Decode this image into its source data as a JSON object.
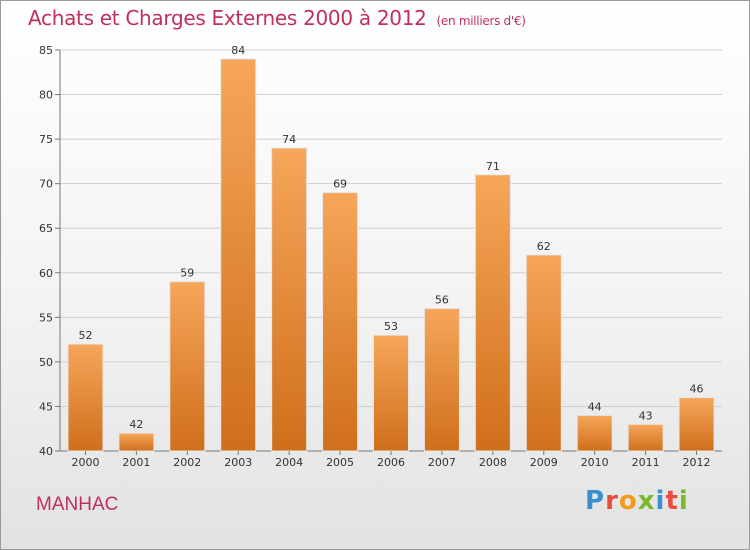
{
  "title": {
    "main": "Achats et Charges Externes 2000 à 2012",
    "unit": "(en milliers d'€)"
  },
  "commune": "MANHAC",
  "logo": {
    "text": "Proxiti",
    "letter_colors": [
      "#3a8fd0",
      "#e94b3c",
      "#f29a1b",
      "#7ab929",
      "#3a8fd0",
      "#e94b3c",
      "#7ab929"
    ]
  },
  "colors": {
    "title": "#c0305a",
    "bar_light": "#f6a65a",
    "bar_dark": "#cf6f1c"
  },
  "chart_data": {
    "type": "bar",
    "categories": [
      "2000",
      "2001",
      "2002",
      "2003",
      "2004",
      "2005",
      "2006",
      "2007",
      "2008",
      "2009",
      "2010",
      "2011",
      "2012"
    ],
    "values": [
      52,
      42,
      59,
      84,
      74,
      69,
      53,
      56,
      71,
      62,
      44,
      43,
      46
    ],
    "title": "Achats et Charges Externes 2000 à 2012",
    "xlabel": "",
    "ylabel": "",
    "ylim": [
      40,
      85
    ],
    "yticks": [
      40,
      45,
      50,
      55,
      60,
      65,
      70,
      75,
      80,
      85
    ],
    "grid": true,
    "data_labels": true
  }
}
